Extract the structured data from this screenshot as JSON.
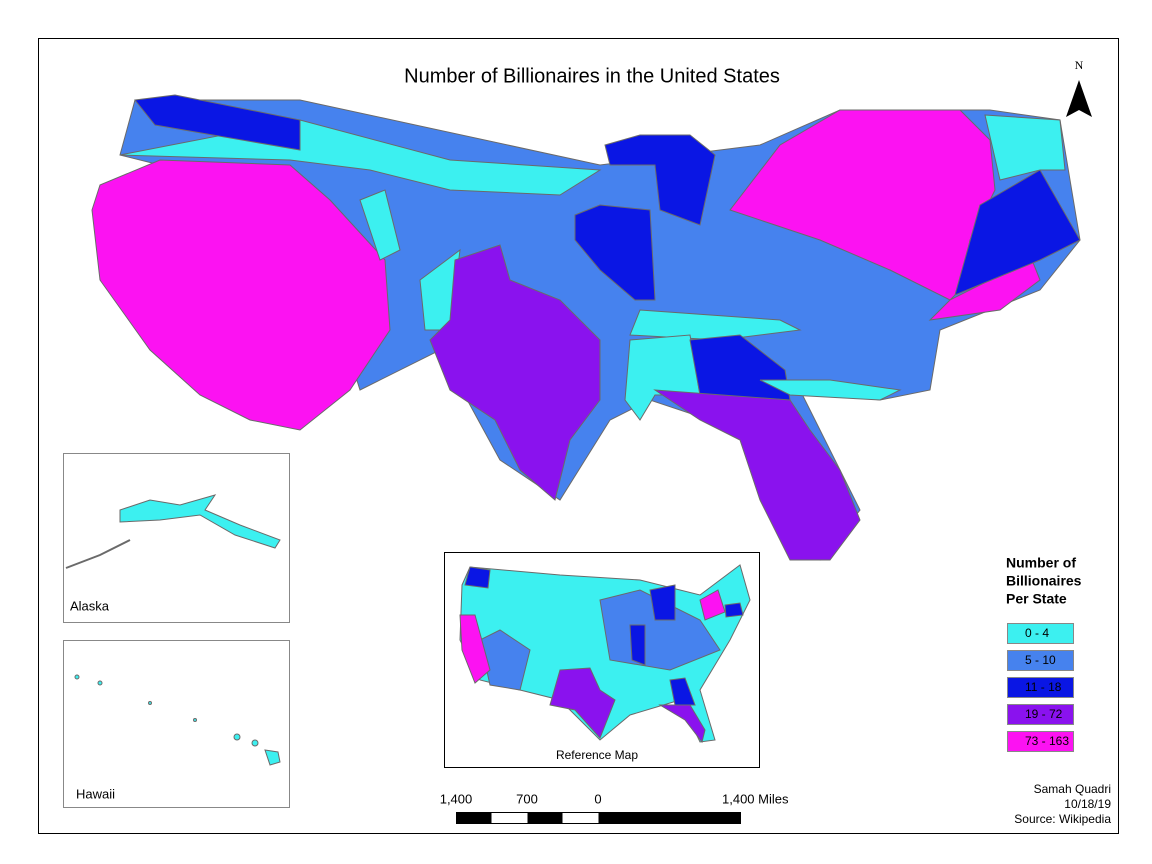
{
  "title": "Number of Billionaires in the United States",
  "north": "N",
  "insets": {
    "alaska": "Alaska",
    "hawaii": "Hawaii",
    "reference": "Reference Map"
  },
  "legend": {
    "title": [
      "Number of",
      "Billionaires",
      "Per State"
    ],
    "items": [
      {
        "label": "0 - 4",
        "color": "#3cf0f0"
      },
      {
        "label": "5 - 10",
        "color": "#4682ee"
      },
      {
        "label": "11 - 18",
        "color": "#0a16e4"
      },
      {
        "label": "19 - 72",
        "color": "#8a12ee"
      },
      {
        "label": "73 - 163",
        "color": "#fc12f2"
      }
    ]
  },
  "scale_bar": {
    "labels": [
      "1,400",
      "700",
      "0",
      "1,400 Miles"
    ]
  },
  "credits": [
    "Samah Quadri",
    "10/18/19",
    "Source: Wikipedia"
  ]
}
